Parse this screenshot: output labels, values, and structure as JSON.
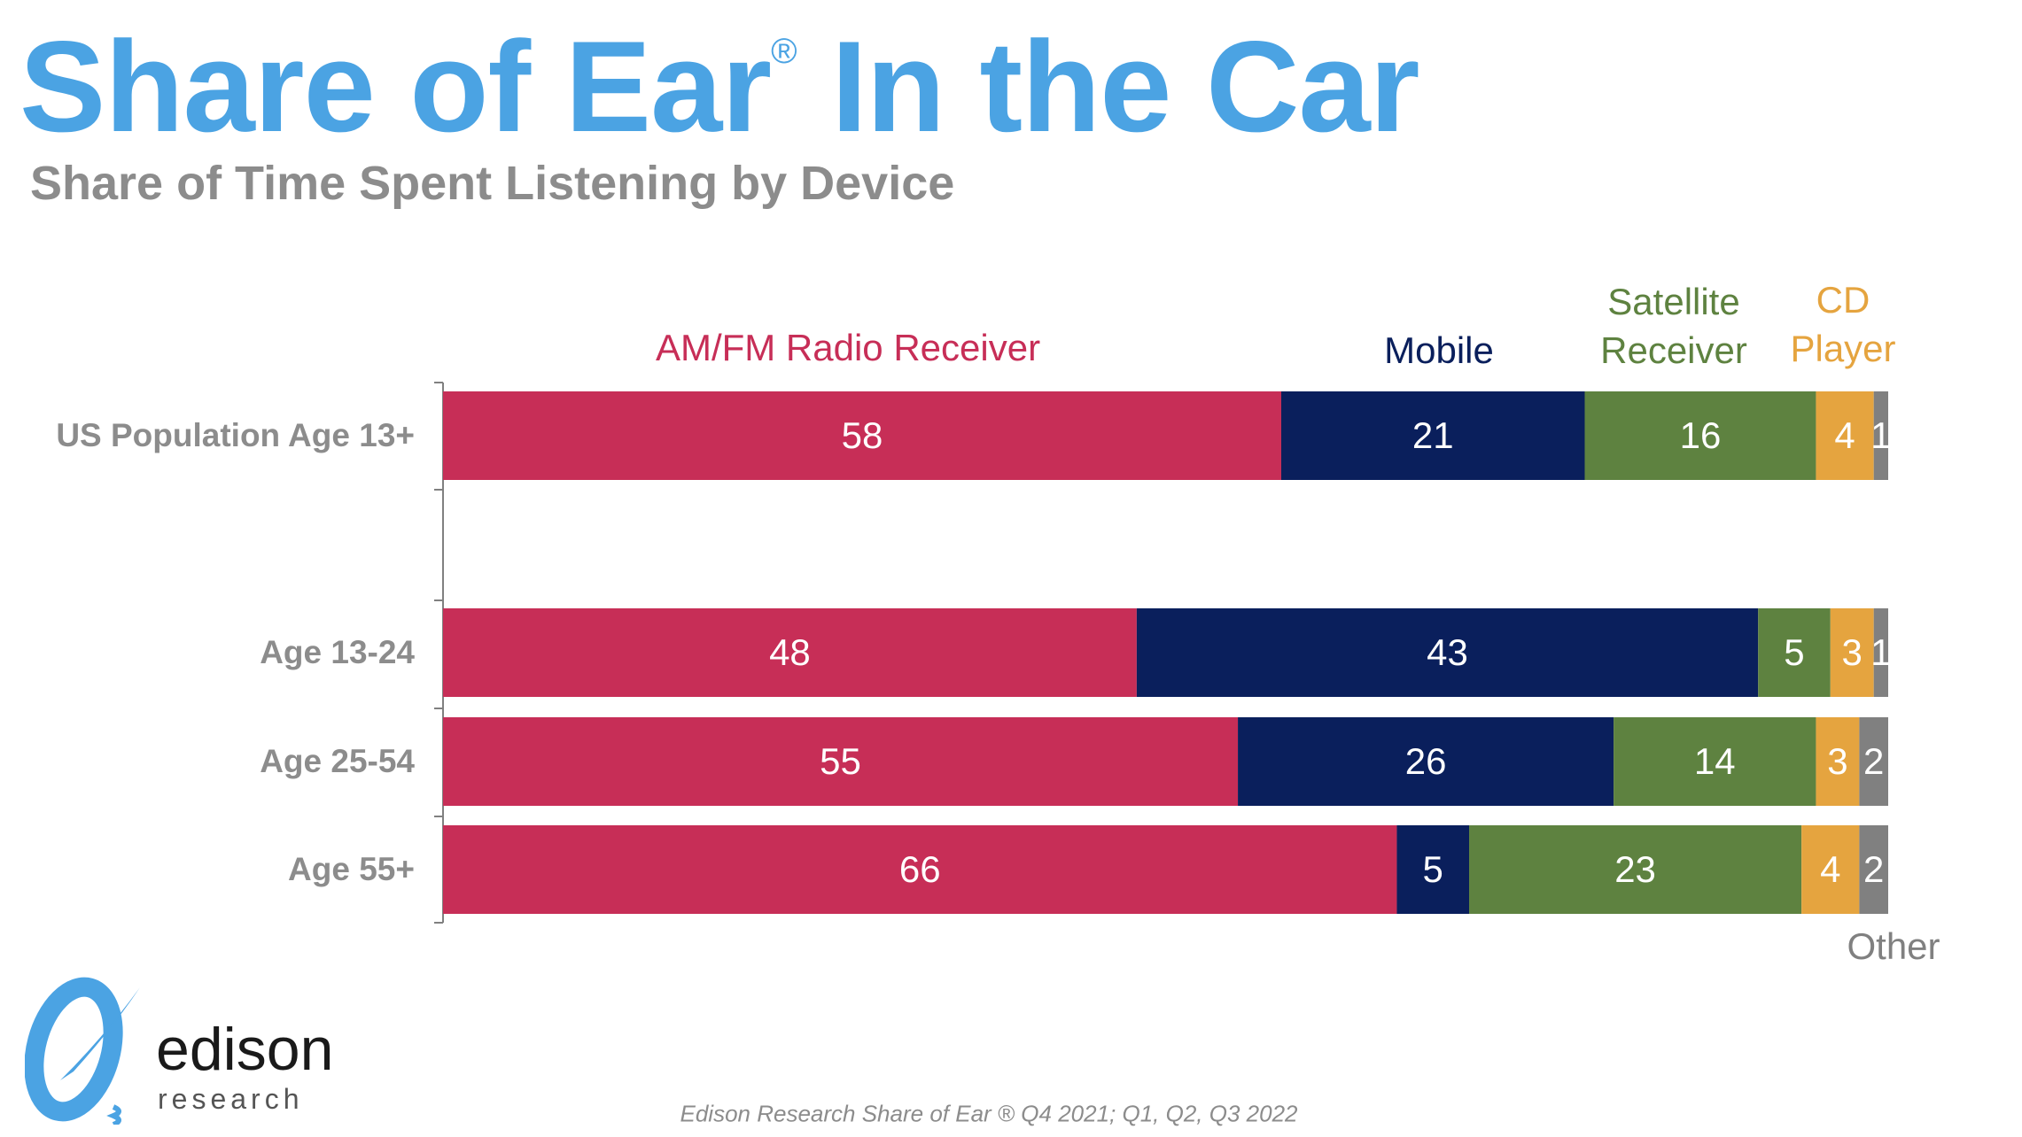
{
  "title": {
    "main": "Share of Ear",
    "registered": "®",
    "rest": " In the Car"
  },
  "subtitle": "Share of Time Spent Listening by Device",
  "footer": "Edison Research Share of Ear ® Q4 2021; Q1, Q2, Q3 2022",
  "logo": {
    "text": "edison",
    "subtext": "research"
  },
  "chart_data": {
    "type": "bar",
    "orientation": "horizontal",
    "stacked": true,
    "categories": [
      "US Population Age 13+",
      "Age 13-24",
      "Age 25-54",
      "Age 55+"
    ],
    "series": [
      {
        "name": "AM/FM Radio Receiver",
        "color": "#C72E57",
        "values": [
          58,
          48,
          55,
          66
        ]
      },
      {
        "name": "Mobile",
        "color": "#0A1F5C",
        "values": [
          21,
          43,
          26,
          5
        ]
      },
      {
        "name": "Satellite Receiver",
        "color": "#5E8240",
        "values": [
          16,
          5,
          14,
          23
        ]
      },
      {
        "name": "CD Player",
        "color": "#E5A43F",
        "values": [
          4,
          3,
          3,
          4
        ]
      },
      {
        "name": "Other",
        "color": "#808080",
        "values": [
          1,
          1,
          2,
          2
        ]
      }
    ],
    "legend_labels": {
      "amfm": "AM/FM Radio Receiver",
      "mobile": "Mobile",
      "satellite": [
        "Satellite",
        "Receiver"
      ],
      "cd": [
        "CD",
        "Player"
      ],
      "other": "Other"
    },
    "xlim": [
      0,
      100
    ],
    "grid": false,
    "data_labels": true
  },
  "colors": {
    "title": "#4BA3E3",
    "text_gray": "#8C8C8C"
  }
}
